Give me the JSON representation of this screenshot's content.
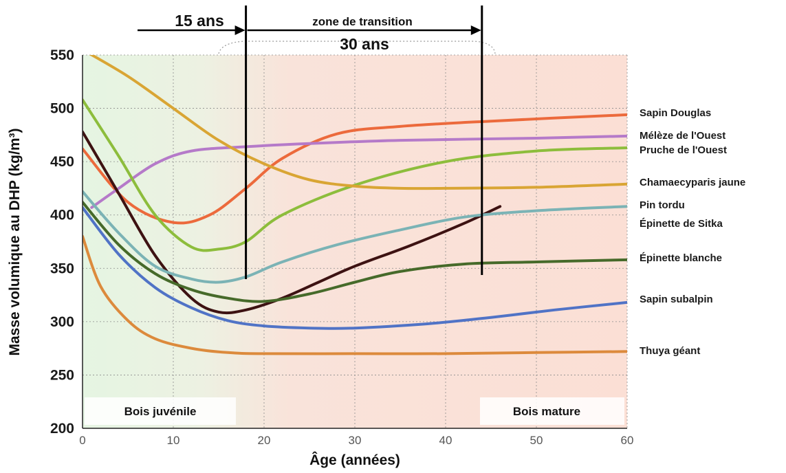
{
  "chart_data": {
    "type": "line",
    "xlabel": "Âge (années)",
    "ylabel": "Masse volumique au DHP (kg/m³)",
    "xlim": [
      0,
      60
    ],
    "ylim": [
      200,
      550
    ],
    "xticks": [
      0,
      10,
      20,
      30,
      40,
      50,
      60
    ],
    "yticks": [
      200,
      250,
      300,
      350,
      400,
      450,
      500,
      550
    ],
    "grid": "dotted",
    "regions": {
      "juvenile_label": "Bois juvénile",
      "mature_label": "Bois mature",
      "transition_label": "zone de transition",
      "juvenile_period": "15 ans",
      "transition_period": "30 ans",
      "juvenile_end_x": 18,
      "transition_end_x": 44
    },
    "colors": {
      "juvenile_bg": "#e6f4e3",
      "mature_bg": "#fbe2d8",
      "grid": "#ffffff"
    },
    "series": [
      {
        "name": "Sapin Douglas",
        "color": "#ec6a3c",
        "x": [
          0,
          5,
          10,
          14,
          18,
          22,
          28,
          35,
          45,
          60
        ],
        "values": [
          462,
          412,
          393,
          400,
          425,
          453,
          476,
          483,
          488,
          494
        ]
      },
      {
        "name": "Mélèze de l'Ouest",
        "color": "#b57ac9",
        "x": [
          1,
          4,
          8,
          12,
          18,
          25,
          35,
          50,
          60
        ],
        "values": [
          407,
          425,
          448,
          460,
          464,
          467,
          470,
          472,
          474
        ]
      },
      {
        "name": "Pruche de l'Ouest",
        "color": "#8dbd3c",
        "x": [
          0,
          4,
          8,
          12,
          15,
          18,
          22,
          30,
          40,
          50,
          60
        ],
        "values": [
          508,
          455,
          400,
          370,
          368,
          375,
          400,
          428,
          450,
          460,
          463
        ]
      },
      {
        "name": "Chamaecyparis jaune",
        "color": "#d9a534",
        "x": [
          0,
          5,
          10,
          15,
          20,
          25,
          30,
          35,
          40,
          50,
          60
        ],
        "values": [
          555,
          530,
          500,
          470,
          448,
          433,
          427,
          425,
          425,
          426,
          429
        ]
      },
      {
        "name": "Pin tordu",
        "color": "#3d1212",
        "x": [
          0,
          4,
          8,
          12,
          15,
          18,
          22,
          26,
          30,
          36,
          42,
          46
        ],
        "values": [
          478,
          420,
          362,
          322,
          309,
          311,
          322,
          337,
          352,
          371,
          392,
          408
        ]
      },
      {
        "name": "Épinette de Sitka",
        "color": "#7bb3b5",
        "x": [
          0,
          4,
          8,
          12,
          15,
          18,
          22,
          28,
          35,
          42,
          50,
          60
        ],
        "values": [
          422,
          383,
          352,
          340,
          337,
          342,
          356,
          372,
          386,
          398,
          404,
          408
        ]
      },
      {
        "name": "Épinette blanche",
        "color": "#466a2a",
        "x": [
          0,
          4,
          8,
          12,
          16,
          20,
          25,
          30,
          35,
          42,
          50,
          60
        ],
        "values": [
          412,
          372,
          345,
          330,
          322,
          319,
          326,
          337,
          347,
          354,
          356,
          358
        ]
      },
      {
        "name": "Sapin subalpin",
        "color": "#5073c6",
        "x": [
          0,
          4,
          8,
          12,
          16,
          20,
          25,
          30,
          38,
          45,
          52,
          60
        ],
        "values": [
          407,
          363,
          332,
          313,
          301,
          296,
          294,
          294,
          298,
          304,
          311,
          318
        ]
      },
      {
        "name": "Thuya géant",
        "color": "#dc8a3c",
        "x": [
          0,
          2,
          5,
          8,
          12,
          16,
          20,
          30,
          40,
          50,
          60
        ],
        "values": [
          380,
          333,
          301,
          284,
          275,
          271,
          270,
          270,
          270,
          271,
          272
        ]
      }
    ]
  }
}
